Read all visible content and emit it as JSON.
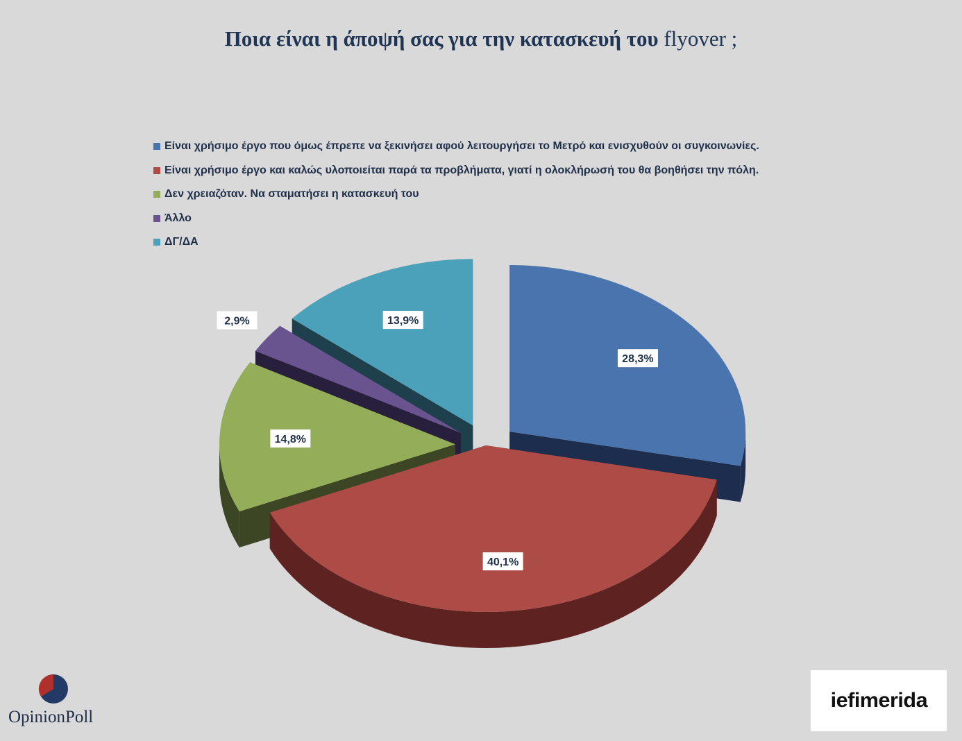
{
  "title": {
    "main": "Ποια είναι η άποψή σας για την κατασκευή του",
    "suffix": " flyover ;"
  },
  "chart_data": {
    "type": "pie",
    "style": "3d-exploded",
    "legend_position": "top-left",
    "slices": [
      {
        "label": "Είναι χρήσιμο έργο που όμως έπρεπε να ξεκινήσει αφού λειτουργήσει το Μετρό και ενισχυθούν οι συγκοινωνίες.",
        "value": 28.3,
        "display": "28,3%",
        "color": "#4a74ae",
        "side_color": "#1c2d4d"
      },
      {
        "label": "Είναι χρήσιμο έργο και καλώς υλοποιείται παρά τα προβλήματα, γιατί η ολοκλήρωσή του θα βοηθήσει την πόλη.",
        "value": 40.1,
        "display": "40,1%",
        "color": "#ad4b46",
        "side_color": "#5e2320"
      },
      {
        "label": "Δεν χρειαζόταν. Να σταματήσει η κατασκευή του",
        "value": 14.8,
        "display": "14,8%",
        "color": "#93ad58",
        "side_color": "#3c4524"
      },
      {
        "label": "Άλλο",
        "value": 2.9,
        "display": "2,9%",
        "color": "#6a5490",
        "side_color": "#281f3c"
      },
      {
        "label": "ΔΓ/ΔΑ",
        "value": 13.9,
        "display": "13,9%",
        "color": "#4ba0ba",
        "side_color": "#1e404c"
      }
    ]
  },
  "logos": {
    "opinion_poll": "OpinionPoll",
    "iefimerida": "iefimerida"
  }
}
